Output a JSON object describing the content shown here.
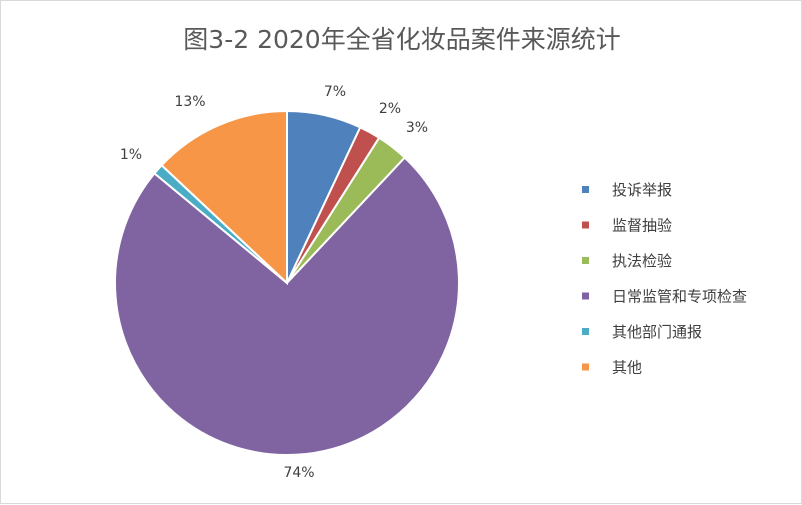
{
  "chart_data": {
    "type": "pie",
    "title": "图3-2  2020年全省化妆品案件来源统计",
    "categories": [
      "投诉举报",
      "监督抽验",
      "执法检验",
      "日常监管和专项检查",
      "其他部门通报",
      "其他"
    ],
    "values": [
      7,
      2,
      3,
      74,
      1,
      13
    ],
    "data_labels": [
      "7%",
      "2%",
      "3%",
      "74%",
      "1%",
      "13%"
    ],
    "colors": [
      "#4f81bd",
      "#c0504d",
      "#9bbb59",
      "#8064a2",
      "#4bacc6",
      "#f79646"
    ],
    "legend_position": "right",
    "start_angle_deg": 0,
    "direction": "clockwise"
  }
}
